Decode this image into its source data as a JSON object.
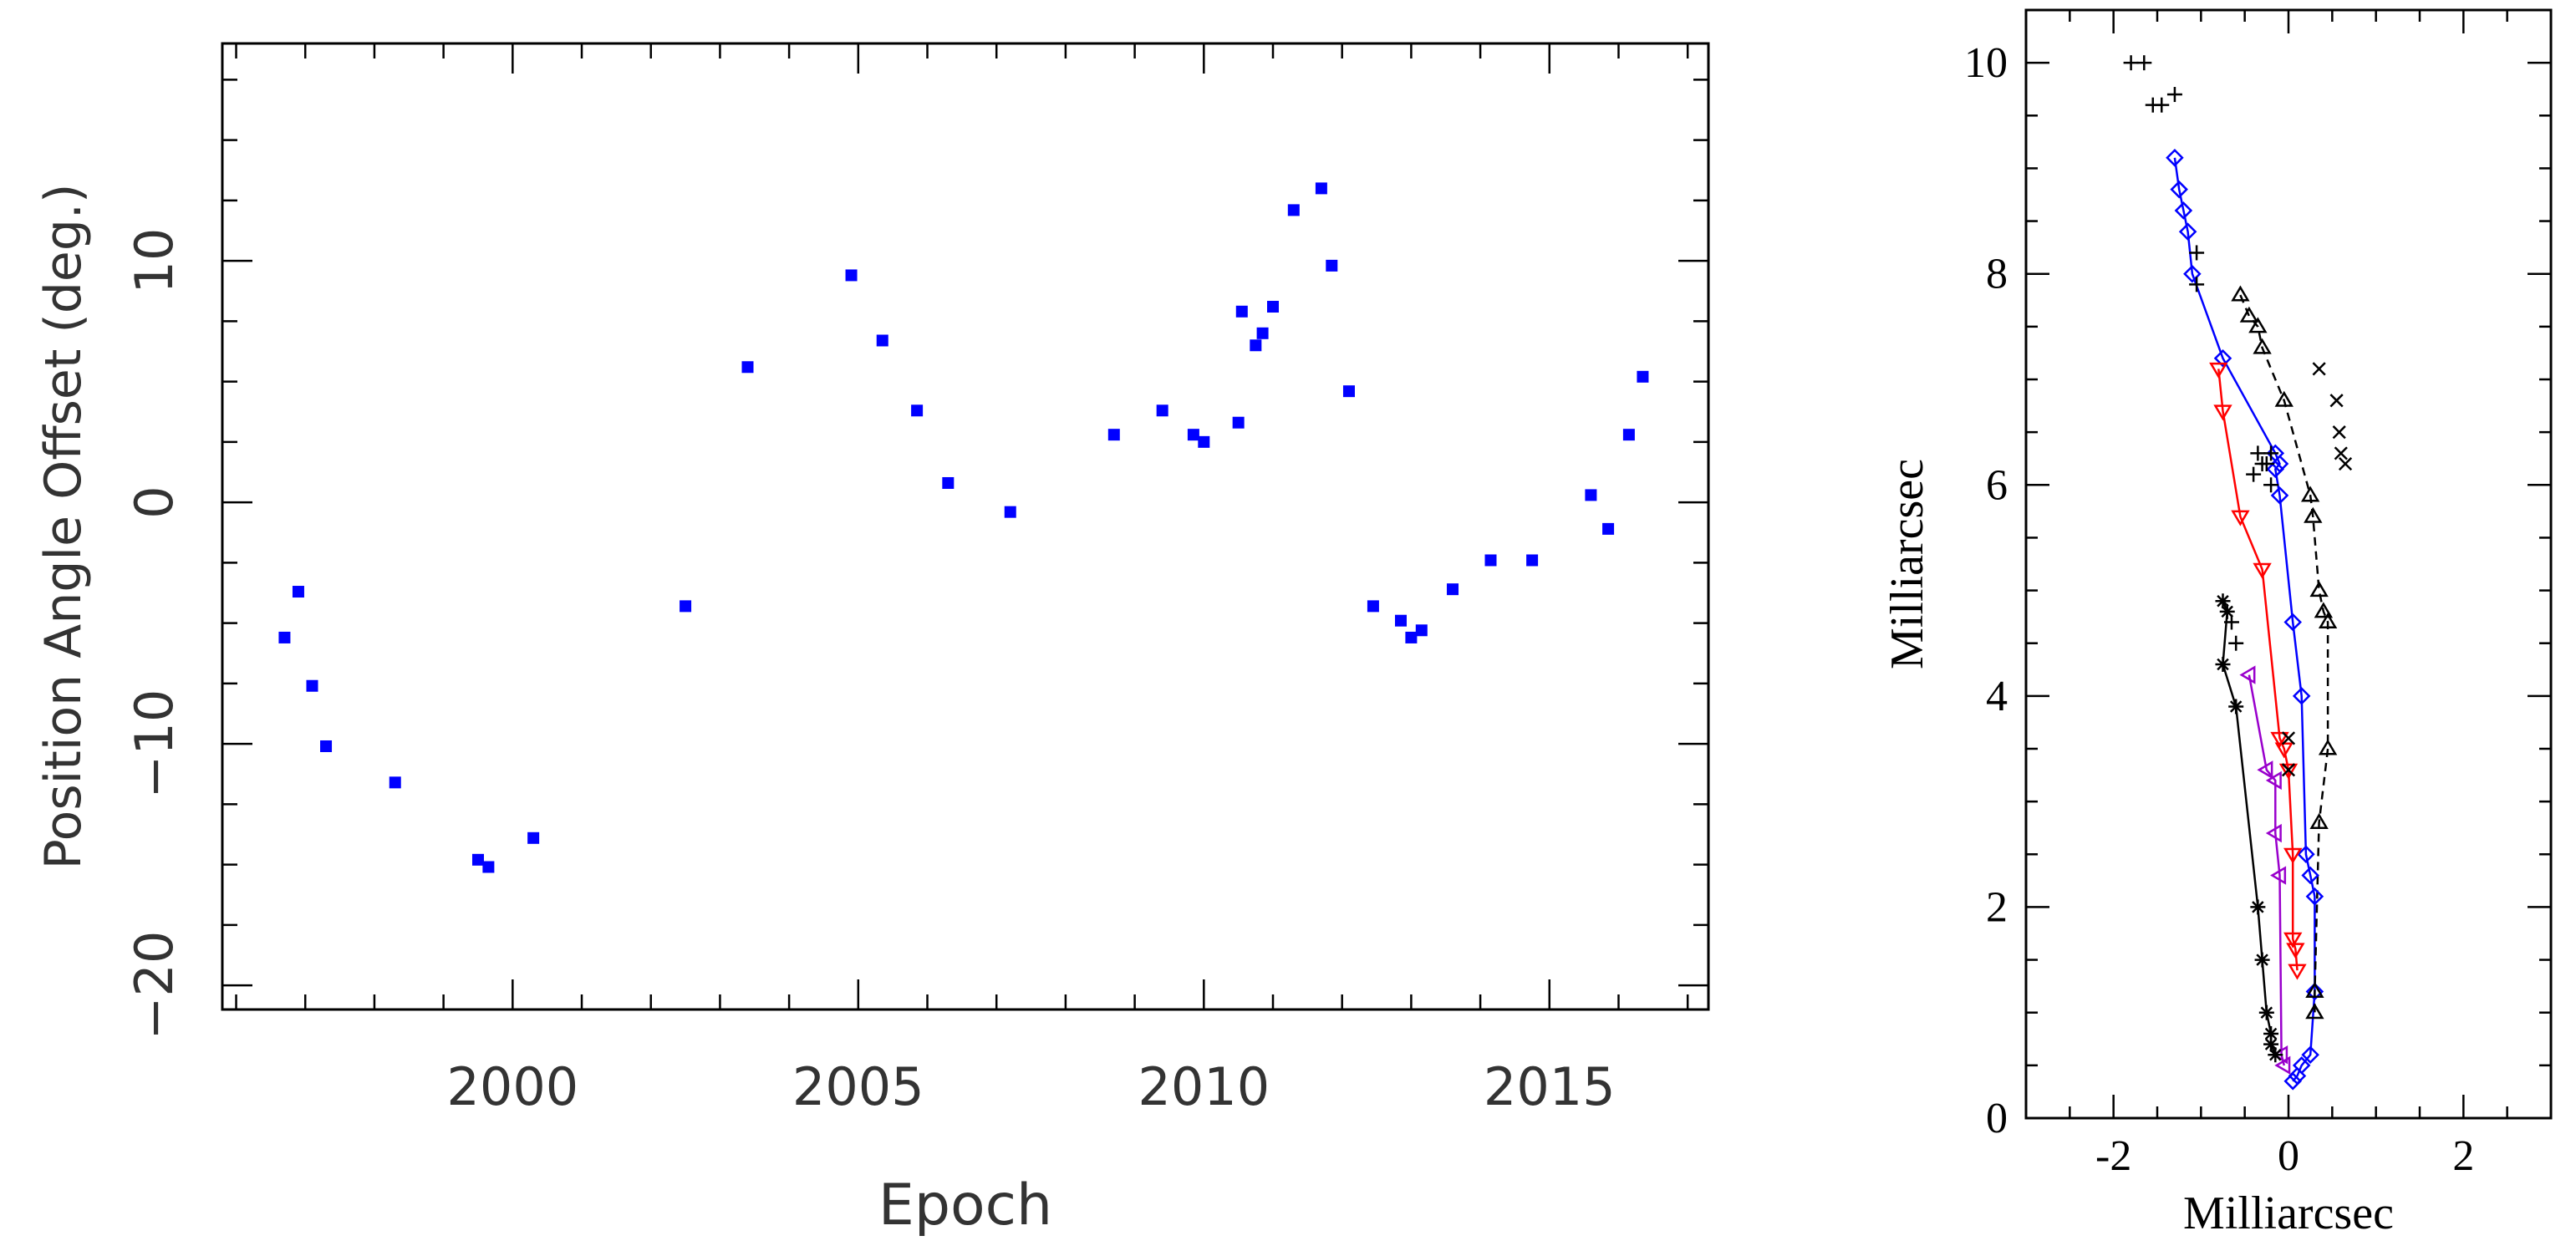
{
  "chart_data": [
    {
      "type": "scatter",
      "title": "",
      "xlabel": "Epoch",
      "ylabel": "Position Angle Offset (deg.)",
      "xlim": [
        1995.8,
        2017.3
      ],
      "ylim": [
        -21,
        19
      ],
      "xticks": [
        2000,
        2005,
        2010,
        2015
      ],
      "xtick_labels": [
        "2000",
        "2005",
        "2010",
        "2015"
      ],
      "yticks": [
        -20,
        -10,
        0,
        10
      ],
      "ytick_labels": [
        "−20",
        "−10",
        "0",
        "10"
      ],
      "grid": false,
      "marker_color": "#0000ff",
      "series": [
        {
          "x": [
            1996.7,
            1996.9,
            1997.1,
            1997.3,
            1998.3,
            1999.5,
            1999.65,
            2000.3,
            2002.5,
            2003.4,
            2004.9,
            2005.35,
            2005.85,
            2006.3,
            2007.2,
            2008.7,
            2009.4,
            2009.85,
            2010.0,
            2010.5,
            2010.55,
            2010.75,
            2010.85,
            2011.0,
            2011.3,
            2011.7,
            2011.85,
            2012.1,
            2012.45,
            2012.85,
            2013.0,
            2013.15,
            2013.6,
            2014.15,
            2014.75,
            2015.6,
            2015.85,
            2016.15,
            2016.35
          ],
          "y": [
            -5.6,
            -3.7,
            -7.6,
            -10.1,
            -11.6,
            -14.8,
            -15.1,
            -13.9,
            -4.3,
            5.6,
            9.4,
            6.7,
            3.8,
            0.8,
            -0.4,
            2.8,
            3.8,
            2.8,
            2.5,
            3.3,
            7.9,
            6.5,
            7.0,
            8.1,
            12.1,
            13.0,
            9.8,
            4.6,
            -4.3,
            -4.9,
            -5.6,
            -5.3,
            -3.6,
            -2.4,
            -2.4,
            0.3,
            -1.1,
            2.8,
            5.2
          ]
        }
      ]
    },
    {
      "type": "scatter",
      "title": "",
      "xlabel": "Milliarcsec",
      "ylabel": "Milliarcsec",
      "xlim": [
        -3.0,
        3.0
      ],
      "ylim": [
        0,
        10.5
      ],
      "xticks": [
        -2,
        0,
        2
      ],
      "xtick_labels": [
        "-2",
        "0",
        "2"
      ],
      "yticks": [
        0,
        2,
        4,
        6,
        8,
        10
      ],
      "ytick_labels": [
        "0",
        "2",
        "4",
        "6",
        "8",
        "10"
      ],
      "grid": false,
      "series": [
        {
          "marker": "diamond",
          "color": "#0000ff",
          "line": "solid",
          "x": [
            -1.3,
            -1.25,
            -1.2,
            -1.15,
            -1.1,
            -0.75,
            -0.15,
            -0.1,
            -0.15,
            -0.1,
            0.05,
            0.15,
            0.2,
            0.25,
            0.3,
            0.3,
            0.25,
            0.15,
            0.1,
            0.05
          ],
          "y": [
            9.1,
            8.8,
            8.6,
            8.4,
            8.0,
            7.2,
            6.3,
            6.2,
            6.15,
            5.9,
            4.7,
            4.0,
            2.5,
            2.3,
            2.1,
            1.2,
            0.6,
            0.5,
            0.4,
            0.35
          ]
        },
        {
          "marker": "triangle-down",
          "color": "#ff0000",
          "line": "solid",
          "x": [
            -0.8,
            -0.75,
            -0.55,
            -0.3,
            -0.1,
            -0.05,
            0.0,
            0.05,
            0.05,
            0.08,
            0.1
          ],
          "y": [
            7.1,
            6.7,
            5.7,
            5.2,
            3.6,
            3.5,
            3.3,
            2.5,
            1.7,
            1.6,
            1.4
          ]
        },
        {
          "marker": "triangle-left",
          "color": "#9900cc",
          "line": "solid",
          "x": [
            -0.45,
            -0.25,
            -0.15,
            -0.15,
            -0.1,
            -0.08,
            -0.05
          ],
          "y": [
            4.2,
            3.3,
            3.2,
            2.7,
            2.3,
            0.6,
            0.5
          ]
        },
        {
          "marker": "asterisk",
          "color": "#000000",
          "line": "solid",
          "x": [
            -0.75,
            -0.7,
            -0.75,
            -0.6,
            -0.35,
            -0.3,
            -0.25,
            -0.2,
            -0.2,
            -0.15
          ],
          "y": [
            4.9,
            4.8,
            4.3,
            3.9,
            2.0,
            1.5,
            1.0,
            0.8,
            0.7,
            0.6
          ]
        },
        {
          "marker": "triangle-up",
          "color": "#000000",
          "line": "dashed",
          "x": [
            -0.55,
            -0.45,
            -0.35,
            -0.3,
            -0.05,
            0.25,
            0.28,
            0.35,
            0.4,
            0.45,
            0.45,
            0.35,
            0.3,
            0.3
          ],
          "y": [
            7.8,
            7.6,
            7.5,
            7.3,
            6.8,
            5.9,
            5.7,
            5.0,
            4.8,
            4.7,
            3.5,
            2.8,
            1.2,
            1.0
          ]
        },
        {
          "marker": "cross",
          "color": "#000000",
          "line": "none",
          "x": [
            0.35,
            0.55,
            0.58,
            0.6,
            0.65,
            0.0,
            0.0
          ],
          "y": [
            7.1,
            6.8,
            6.5,
            6.3,
            6.2,
            3.6,
            3.3
          ]
        },
        {
          "marker": "plus",
          "color": "#000000",
          "line": "none",
          "x": [
            -1.8,
            -1.65,
            -1.55,
            -1.45,
            -1.3,
            -1.05,
            -1.05,
            -0.35,
            -0.4,
            -0.3,
            -0.2,
            -0.25,
            -0.2,
            -0.65,
            -0.6
          ],
          "y": [
            10.0,
            10.0,
            9.6,
            9.6,
            9.7,
            8.2,
            7.9,
            6.3,
            6.1,
            6.2,
            6.3,
            6.2,
            6.0,
            4.7,
            4.5
          ]
        }
      ]
    }
  ]
}
